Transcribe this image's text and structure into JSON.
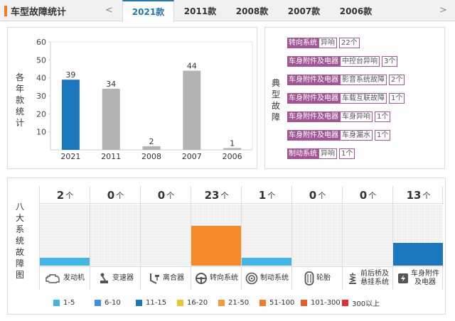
{
  "header": {
    "title": "车型故障统计",
    "prev_arrow": "<",
    "next_arrow": ">",
    "tabs": [
      {
        "label": "2021款",
        "active": true
      },
      {
        "label": "2011款",
        "active": false
      },
      {
        "label": "2008款",
        "active": false
      },
      {
        "label": "2007款",
        "active": false
      },
      {
        "label": "2006款",
        "active": false
      }
    ]
  },
  "chart_panel": {
    "side_label": [
      "各",
      "年",
      "款",
      "统",
      "计"
    ]
  },
  "chart_data": {
    "type": "bar",
    "title": "",
    "xlabel": "",
    "ylabel": "各年款统计",
    "categories": [
      "2021",
      "2011",
      "2008",
      "2007",
      "2006"
    ],
    "values": [
      39,
      34,
      2,
      44,
      1
    ],
    "ylim": [
      0,
      60
    ],
    "yticks": [
      10,
      20,
      30,
      40,
      50,
      60
    ],
    "highlight_index": 0,
    "colors": {
      "highlight": "#1b78bc",
      "normal": "#b2b2b2"
    }
  },
  "fault_panel": {
    "side_label": [
      "典",
      "型",
      "故",
      "障"
    ],
    "items": [
      {
        "category": "转向系统",
        "issue": "异响",
        "count": "22个"
      },
      {
        "category": "车身附件及电器",
        "issue": "中控台异响",
        "count": "3个"
      },
      {
        "category": "车身附件及电器",
        "issue": "影音系统故障",
        "count": "2个"
      },
      {
        "category": "车身附件及电器",
        "issue": "车载互联故障",
        "count": "1个"
      },
      {
        "category": "车身附件及电器",
        "issue": "车身异响",
        "count": "1个"
      },
      {
        "category": "车身附件及电器",
        "issue": "车身漏水",
        "count": "1个"
      },
      {
        "category": "制动系统",
        "issue": "异响",
        "count": "1个"
      }
    ]
  },
  "systems_panel": {
    "side_label": [
      "八",
      "大",
      "系",
      "统",
      "故",
      "障",
      "图"
    ],
    "unit": "个",
    "systems": [
      {
        "name": "发动机",
        "count": "2",
        "value": 2,
        "icon": "engine-icon",
        "color": "#41b6e6"
      },
      {
        "name": "变速器",
        "count": "0",
        "value": 0,
        "icon": "gearbox-icon",
        "color": ""
      },
      {
        "name": "离合器",
        "count": "0",
        "value": 0,
        "icon": "clutch-icon",
        "color": ""
      },
      {
        "name": "转向系统",
        "count": "23",
        "value": 23,
        "icon": "steering-wheel-icon",
        "color": "#f68a2a"
      },
      {
        "name": "制动系统",
        "count": "1",
        "value": 1,
        "icon": "brake-disc-icon",
        "color": "#41b6e6"
      },
      {
        "name": "轮胎",
        "count": "0",
        "value": 0,
        "icon": "tire-icon",
        "color": ""
      },
      {
        "name": "前后桥及悬挂系统",
        "name_lines": [
          "前后桥及",
          "悬挂系统"
        ],
        "count": "0",
        "value": 0,
        "icon": "suspension-icon",
        "color": ""
      },
      {
        "name": "车身附件及电器",
        "name_lines": [
          "车身附件",
          "及电器"
        ],
        "count": "13",
        "value": 13,
        "icon": "electrical-icon",
        "color": "#1b78bc"
      }
    ],
    "fill_levels": [
      0.13,
      0,
      0,
      0.65,
      0.13,
      0,
      0,
      0.37
    ],
    "legend": [
      {
        "label": "1-5",
        "color": "#41b6e6"
      },
      {
        "label": "6-10",
        "color": "#3d8fe0"
      },
      {
        "label": "11-15",
        "color": "#1b78bc"
      },
      {
        "label": "16-20",
        "color": "#f2c12e"
      },
      {
        "label": "21-50",
        "color": "#f39b3b"
      },
      {
        "label": "51-100",
        "color": "#f47a26"
      },
      {
        "label": "101-300",
        "color": "#ec5a24"
      },
      {
        "label": "300以上",
        "color": "#e52d2d"
      }
    ]
  }
}
